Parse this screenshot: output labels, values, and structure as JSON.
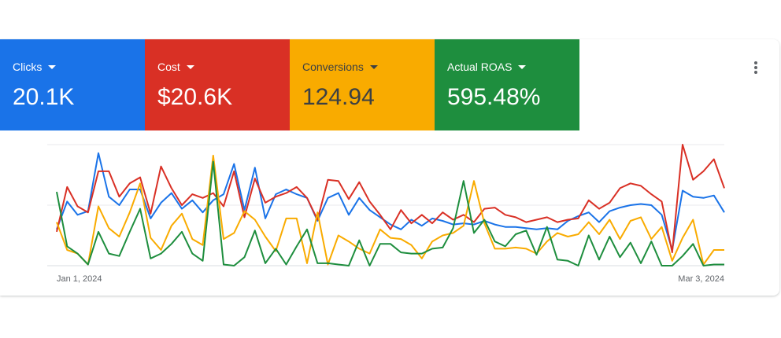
{
  "tiles": [
    {
      "label": "Clicks",
      "value": "20.1K",
      "color": "#1a73e8"
    },
    {
      "label": "Cost",
      "value": "$20.6K",
      "color": "#d93025"
    },
    {
      "label": "Conversions",
      "value": "124.94",
      "color": "#f9ab00"
    },
    {
      "label": "Actual ROAS",
      "value": "595.48%",
      "color": "#1e8e3e"
    }
  ],
  "more_icon": "more-vert-icon",
  "chart_data": {
    "type": "line",
    "x": [
      "Jan 1, 2024",
      "Mar 3, 2024"
    ],
    "x_tick_labels": [
      "Jan 1, 2024",
      "Mar 3, 2024"
    ],
    "grid": true,
    "legend": "none",
    "series": [
      {
        "metric": "Clicks",
        "color": "#1a73e8",
        "values": [
          [
            0.3,
            0.53,
            0.42,
            0.45,
            0.93,
            0.57,
            0.5,
            0.63,
            0.63,
            0.39,
            0.52,
            0.6,
            0.47,
            0.54,
            0.44,
            0.54,
            0.59,
            0.84,
            0.46,
            0.81,
            0.39,
            0.59,
            0.63,
            0.59,
            0.56,
            0.37,
            0.56,
            0.6,
            0.42,
            0.56,
            0.46,
            0.4,
            0.34,
            0.3,
            0.38,
            0.33,
            0.39,
            0.37,
            0.34,
            0.35,
            0.34,
            0.37,
            0.34,
            0.32,
            0.32,
            0.31,
            0.3,
            0.31,
            0.3,
            0.37,
            0.41,
            0.44,
            0.36,
            0.45,
            0.48,
            0.5,
            0.51,
            0.5,
            0.42,
            0.13,
            0.62,
            0.57,
            0.56,
            0.58,
            0.44
          ]
        ]
      },
      {
        "metric": "Cost",
        "color": "#d93025",
        "values": [
          [
            0.28,
            0.65,
            0.49,
            0.44,
            0.78,
            0.78,
            0.57,
            0.68,
            0.73,
            0.43,
            0.82,
            0.64,
            0.5,
            0.59,
            0.56,
            0.6,
            0.49,
            0.78,
            0.4,
            0.72,
            0.52,
            0.57,
            0.6,
            0.65,
            0.56,
            0.38,
            0.71,
            0.7,
            0.55,
            0.69,
            0.53,
            0.42,
            0.3,
            0.46,
            0.35,
            0.42,
            0.35,
            0.44,
            0.38,
            0.42,
            0.36,
            0.47,
            0.48,
            0.42,
            0.4,
            0.36,
            0.38,
            0.4,
            0.36,
            0.38,
            0.39,
            0.54,
            0.47,
            0.52,
            0.64,
            0.68,
            0.66,
            0.59,
            0.53,
            0.11,
            1.0,
            0.71,
            0.78,
            0.88,
            0.64
          ]
        ]
      },
      {
        "metric": "Conversions",
        "color": "#f9ab00",
        "values": [
          [
            0.36,
            0.13,
            0.1,
            0.01,
            0.49,
            0.31,
            0.24,
            0.44,
            0.68,
            0.23,
            0.13,
            0.33,
            0.43,
            0.22,
            0.17,
            0.91,
            0.22,
            0.27,
            0.45,
            0.38,
            0.24,
            0.12,
            0.39,
            0.39,
            0.02,
            0.44,
            0.01,
            0.25,
            0.2,
            0.14,
            0.1,
            0.3,
            0.23,
            0.22,
            0.17,
            0.06,
            0.2,
            0.25,
            0.27,
            0.33,
            0.7,
            0.35,
            0.14,
            0.14,
            0.15,
            0.14,
            0.1,
            0.2,
            0.27,
            0.24,
            0.26,
            0.36,
            0.26,
            0.38,
            0.22,
            0.37,
            0.4,
            0.22,
            0.32,
            0.04,
            0.23,
            0.38,
            0.01,
            0.13,
            0.13
          ]
        ]
      },
      {
        "metric": "Actual ROAS",
        "color": "#1e8e3e",
        "values": [
          [
            0.61,
            0.16,
            0.1,
            0.01,
            0.28,
            0.1,
            0.08,
            0.28,
            0.47,
            0.06,
            0.1,
            0.18,
            0.28,
            0.1,
            0.04,
            0.86,
            0.01,
            0.0,
            0.07,
            0.29,
            0.02,
            0.14,
            0.01,
            0.16,
            0.3,
            0.02,
            0.02,
            0.01,
            0.0,
            0.21,
            0.0,
            0.18,
            0.18,
            0.11,
            0.1,
            0.1,
            0.14,
            0.15,
            0.31,
            0.7,
            0.27,
            0.38,
            0.2,
            0.16,
            0.26,
            0.29,
            0.09,
            0.32,
            0.05,
            0.04,
            0.0,
            0.25,
            0.05,
            0.24,
            0.07,
            0.19,
            0.02,
            0.2,
            0.0,
            0.0,
            0.08,
            0.18,
            0.0,
            0.01,
            0.01
          ]
        ]
      }
    ]
  }
}
